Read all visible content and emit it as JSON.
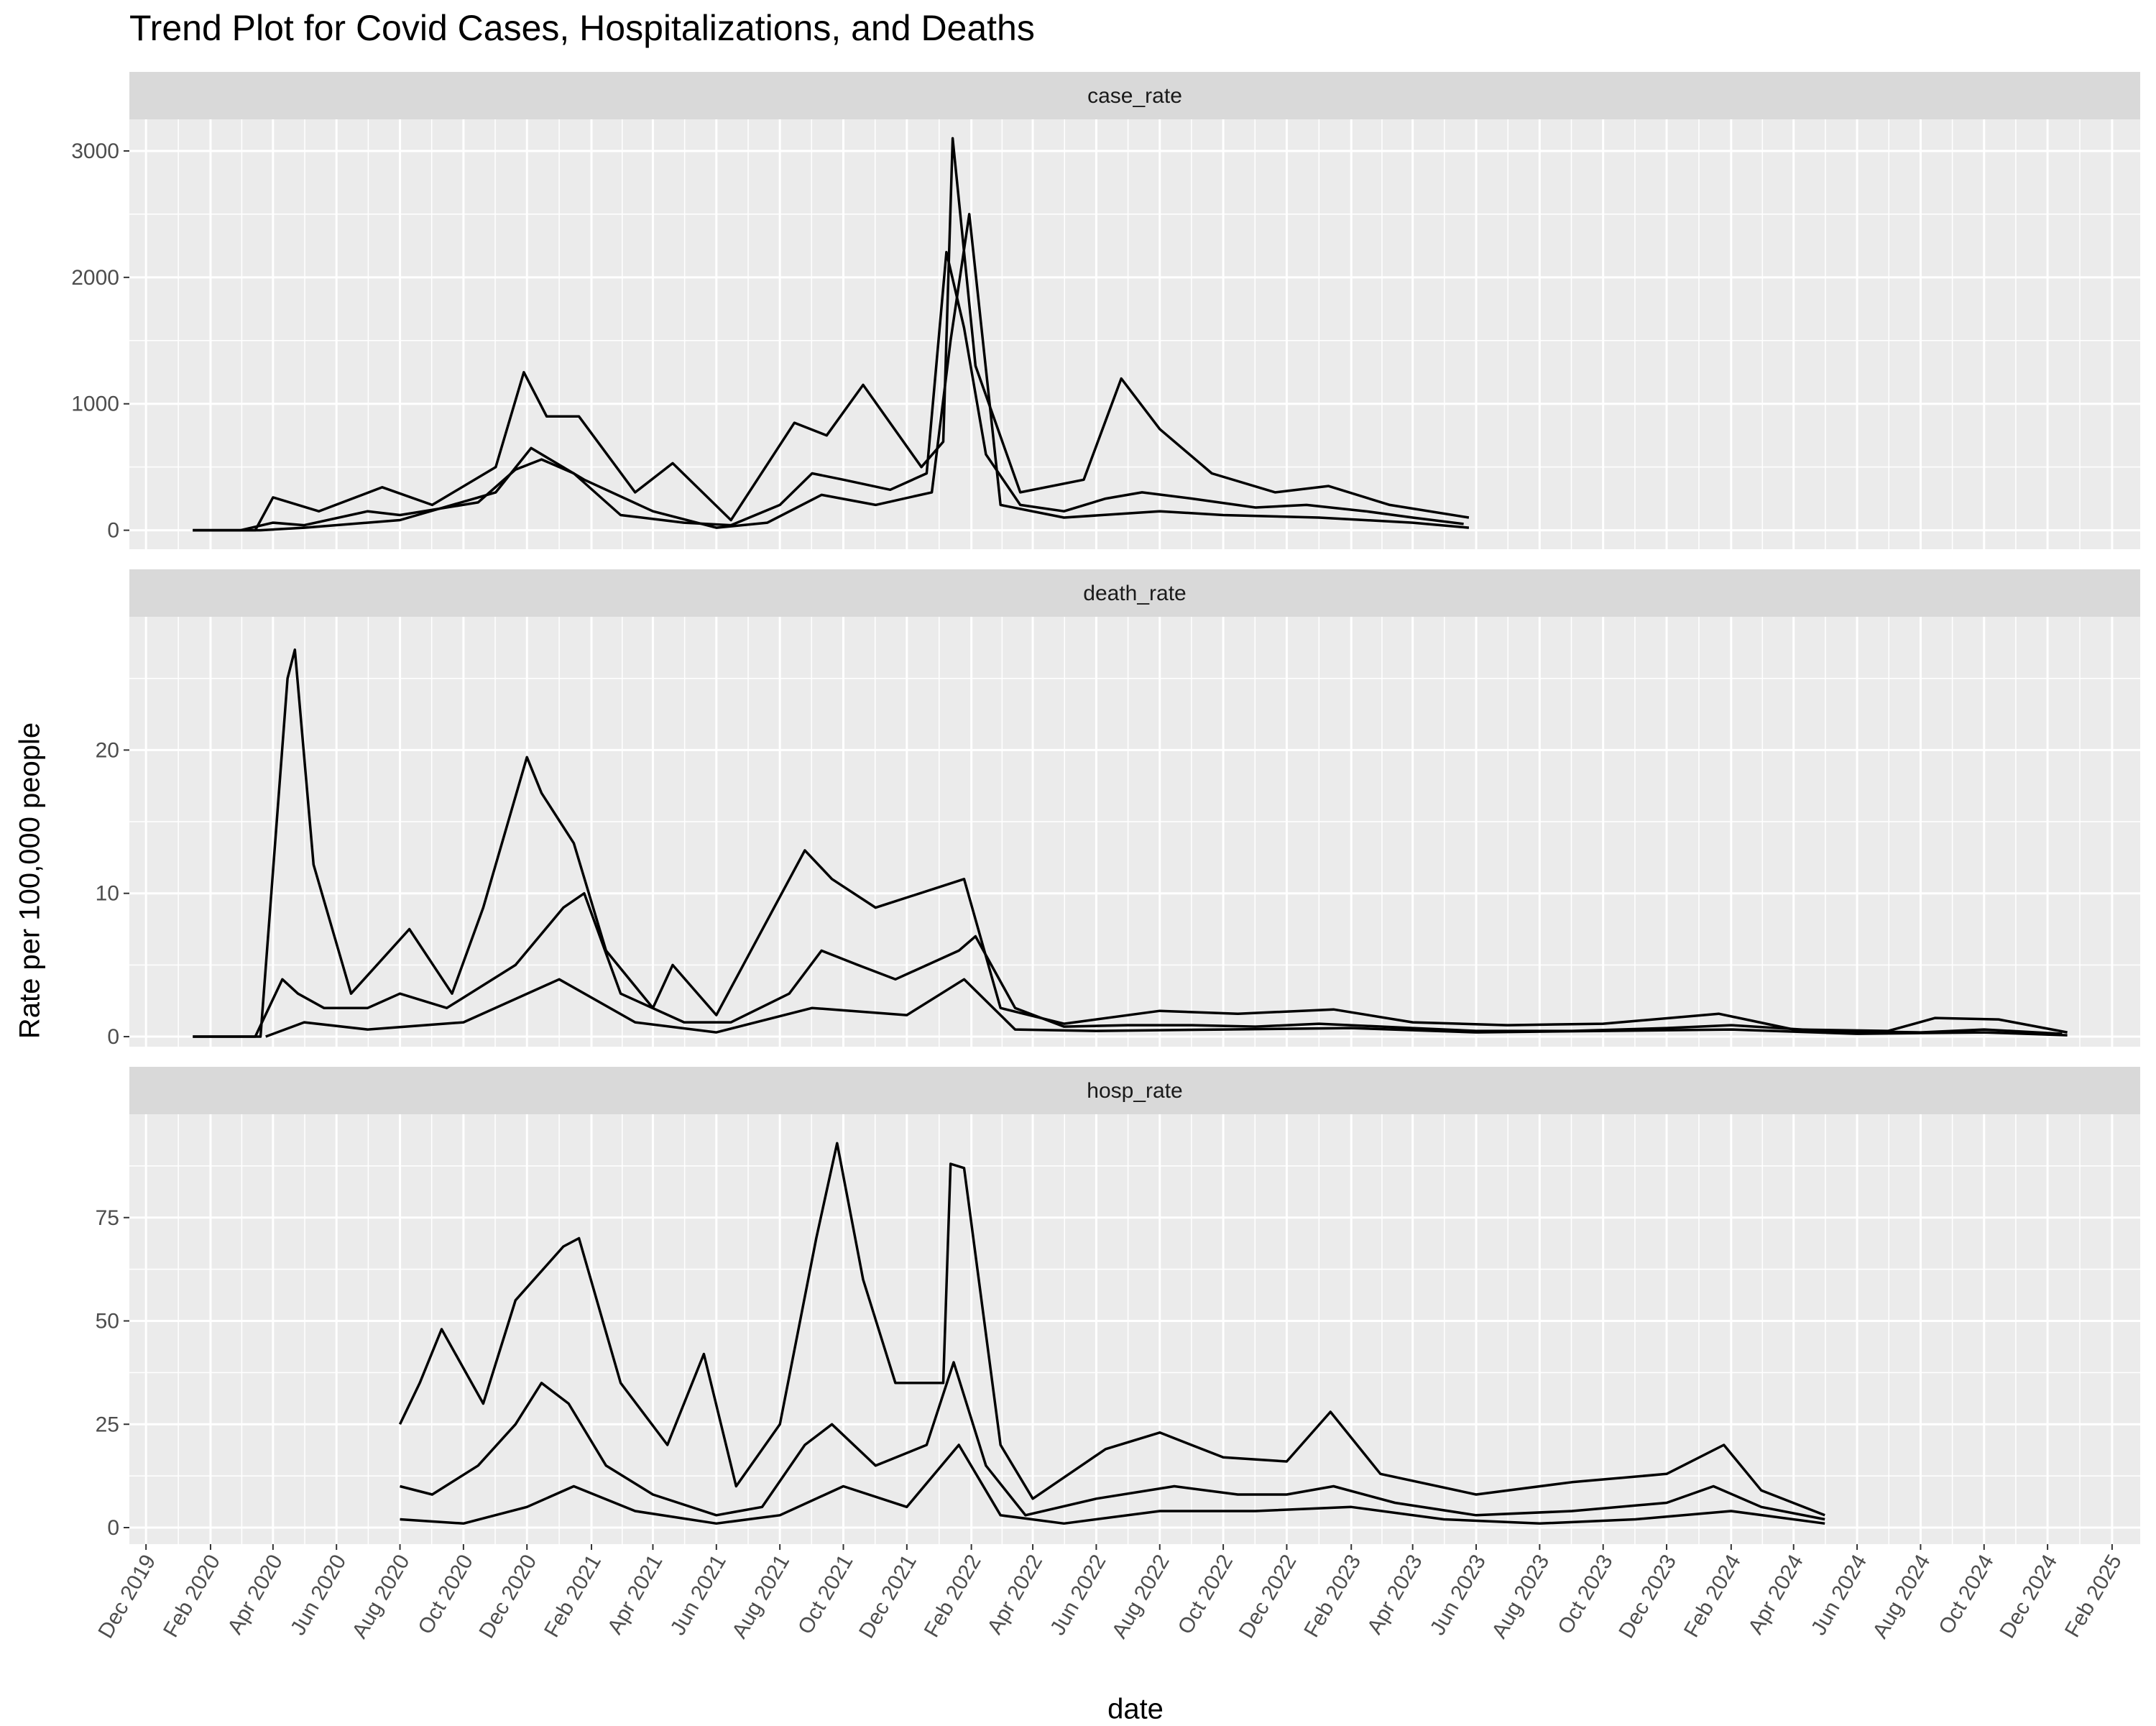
{
  "chart_data": {
    "type": "line",
    "title": "Trend Plot for Covid Cases, Hospitalizations, and Deaths",
    "xlabel": "date",
    "ylabel": "Rate per 100,000 people",
    "x_ticks": [
      "Dec 2019",
      "Feb 2020",
      "Apr 2020",
      "Jun 2020",
      "Aug 2020",
      "Oct 2020",
      "Dec 2020",
      "Feb 2021",
      "Apr 2021",
      "Jun 2021",
      "Aug 2021",
      "Oct 2021",
      "Dec 2021",
      "Feb 2022",
      "Apr 2022",
      "Jun 2022",
      "Aug 2022",
      "Oct 2022",
      "Dec 2022",
      "Feb 2023",
      "Apr 2023",
      "Jun 2023",
      "Aug 2023",
      "Oct 2023",
      "Dec 2023",
      "Feb 2024",
      "Apr 2024",
      "Jun 2024",
      "Aug 2024",
      "Oct 2024",
      "Dec 2024",
      "Feb 2025"
    ],
    "xlim": [
      "2019-11-15",
      "2025-02-28"
    ],
    "grid": true,
    "line_color": "#000000",
    "panel_background": "#ebebeb",
    "strip_background": "#d9d9d9",
    "panels": [
      {
        "strip": "case_rate",
        "ylim": [
          -150,
          3250
        ],
        "yticks": [
          0,
          1000,
          2000,
          3000
        ],
        "note": "approximate envelope traces of many overlapping state-level series",
        "series": [
          {
            "x": [
              "2020-01-15",
              "2020-03-01",
              "2020-04-01",
              "2020-05-01",
              "2020-07-01",
              "2020-08-01",
              "2020-10-15",
              "2020-11-20",
              "2020-12-15",
              "2021-01-15",
              "2021-03-01",
              "2021-05-01",
              "2021-06-15",
              "2021-08-01",
              "2021-09-01",
              "2021-10-01",
              "2021-11-15",
              "2021-12-20",
              "2022-01-08",
              "2022-01-25",
              "2022-02-15",
              "2022-03-20",
              "2022-05-01",
              "2022-06-10",
              "2022-07-15",
              "2022-09-01",
              "2022-11-01",
              "2022-12-20",
              "2023-02-15",
              "2023-04-01",
              "2023-05-20"
            ],
            "y": [
              0,
              0,
              60,
              40,
              150,
              120,
              220,
              480,
              560,
              450,
              120,
              60,
              40,
              200,
              450,
              400,
              320,
              450,
              2200,
              1600,
              600,
              200,
              150,
              250,
              300,
              250,
              180,
              200,
              150,
              100,
              50
            ]
          },
          {
            "x": [
              "2020-01-15",
              "2020-03-15",
              "2020-04-01",
              "2020-05-15",
              "2020-07-15",
              "2020-09-01",
              "2020-11-01",
              "2020-11-28",
              "2020-12-20",
              "2021-01-20",
              "2021-03-15",
              "2021-04-20",
              "2021-06-15",
              "2021-08-15",
              "2021-09-15",
              "2021-10-20",
              "2021-12-15",
              "2022-01-05",
              "2022-01-14",
              "2022-02-05",
              "2022-03-20",
              "2022-05-20",
              "2022-06-25",
              "2022-08-01",
              "2022-09-20",
              "2022-11-20",
              "2023-01-10",
              "2023-03-10",
              "2023-05-25"
            ],
            "y": [
              0,
              0,
              260,
              150,
              340,
              200,
              500,
              1250,
              900,
              900,
              300,
              530,
              80,
              850,
              750,
              1150,
              500,
              700,
              3100,
              1300,
              300,
              400,
              1200,
              800,
              450,
              300,
              350,
              200,
              100
            ]
          },
          {
            "x": [
              "2020-01-15",
              "2020-03-20",
              "2020-05-01",
              "2020-08-01",
              "2020-11-01",
              "2020-12-05",
              "2021-01-25",
              "2021-04-01",
              "2021-06-01",
              "2021-07-20",
              "2021-09-10",
              "2021-11-01",
              "2021-12-25",
              "2022-01-12",
              "2022-01-30",
              "2022-03-01",
              "2022-05-01",
              "2022-08-01",
              "2022-10-01",
              "2023-01-01",
              "2023-04-01",
              "2023-05-25"
            ],
            "y": [
              0,
              0,
              20,
              80,
              300,
              650,
              400,
              150,
              20,
              60,
              280,
              200,
              300,
              1500,
              2500,
              200,
              100,
              150,
              120,
              100,
              60,
              20
            ]
          }
        ]
      },
      {
        "strip": "death_rate",
        "ylim": [
          -0.7,
          29.3
        ],
        "yticks": [
          0,
          10,
          20
        ],
        "note": "approximate envelope traces of many overlapping state-level series",
        "series": [
          {
            "x": [
              "2020-01-15",
              "2020-03-15",
              "2020-04-10",
              "2020-04-25",
              "2020-05-20",
              "2020-07-01",
              "2020-08-01",
              "2020-09-15",
              "2020-11-20",
              "2021-01-05",
              "2021-01-25",
              "2021-03-01",
              "2021-05-01",
              "2021-06-15",
              "2021-08-10",
              "2021-09-10",
              "2021-10-15",
              "2021-11-20",
              "2022-01-20",
              "2022-02-05",
              "2022-03-15",
              "2022-05-01",
              "2022-07-01",
              "2022-09-01",
              "2022-11-01",
              "2023-01-01",
              "2023-04-01",
              "2023-06-01",
              "2023-09-01",
              "2023-12-01",
              "2024-02-01",
              "2024-05-01",
              "2024-08-01",
              "2024-10-01",
              "2024-12-15"
            ],
            "y": [
              0,
              0,
              4,
              3,
              2,
              2,
              3,
              2,
              5,
              9,
              10,
              3,
              1,
              1,
              3,
              6,
              5,
              4,
              6,
              7,
              2,
              0.7,
              0.8,
              0.8,
              0.7,
              0.9,
              0.6,
              0.4,
              0.4,
              0.6,
              0.8,
              0.4,
              0.3,
              0.5,
              0.2
            ]
          },
          {
            "x": [
              "2020-01-15",
              "2020-03-20",
              "2020-04-15",
              "2020-04-22",
              "2020-05-10",
              "2020-06-15",
              "2020-08-10",
              "2020-09-20",
              "2020-10-20",
              "2020-12-01",
              "2020-12-15",
              "2021-01-15",
              "2021-02-15",
              "2021-04-01",
              "2021-04-20",
              "2021-06-01",
              "2021-08-25",
              "2021-09-20",
              "2021-11-01",
              "2022-01-25",
              "2022-03-01",
              "2022-05-01",
              "2022-08-01",
              "2022-10-15",
              "2023-01-15",
              "2023-04-01",
              "2023-07-01",
              "2023-10-01",
              "2024-01-20",
              "2024-04-01",
              "2024-07-01",
              "2024-08-15",
              "2024-10-15",
              "2024-12-20"
            ],
            "y": [
              0,
              0,
              25,
              27,
              12,
              3,
              7.5,
              3,
              9,
              19.5,
              17,
              13.5,
              6,
              2,
              5,
              1.5,
              13,
              11,
              9,
              11,
              2,
              0.9,
              1.8,
              1.6,
              1.9,
              1,
              0.8,
              0.9,
              1.6,
              0.5,
              0.4,
              1.3,
              1.2,
              0.3
            ]
          },
          {
            "x": [
              "2020-03-25",
              "2020-05-01",
              "2020-07-01",
              "2020-10-01",
              "2021-01-01",
              "2021-03-15",
              "2021-06-01",
              "2021-09-01",
              "2021-12-01",
              "2022-01-25",
              "2022-03-15",
              "2022-06-01",
              "2022-10-01",
              "2023-02-01",
              "2023-06-01",
              "2023-10-01",
              "2024-02-01",
              "2024-06-01",
              "2024-10-01",
              "2024-12-20"
            ],
            "y": [
              0,
              1,
              0.5,
              1,
              4,
              1,
              0.3,
              2,
              1.5,
              4,
              0.5,
              0.4,
              0.5,
              0.6,
              0.3,
              0.4,
              0.5,
              0.2,
              0.3,
              0.1
            ]
          }
        ]
      },
      {
        "strip": "hosp_rate",
        "ylim": [
          -4,
          100
        ],
        "yticks": [
          0,
          25,
          50,
          75
        ],
        "note": "approximate envelope traces of many overlapping state-level series",
        "series": [
          {
            "x": [
              "2020-08-01",
              "2020-09-01",
              "2020-10-15",
              "2020-11-20",
              "2020-12-15",
              "2021-01-10",
              "2021-02-15",
              "2021-04-01",
              "2021-06-01",
              "2021-07-15",
              "2021-08-25",
              "2021-09-20",
              "2021-11-01",
              "2021-12-20",
              "2022-01-15",
              "2022-02-15",
              "2022-03-25",
              "2022-06-01",
              "2022-08-15",
              "2022-10-15",
              "2022-12-01",
              "2023-01-15",
              "2023-03-15",
              "2023-06-01",
              "2023-09-01",
              "2023-12-01",
              "2024-01-15",
              "2024-03-01",
              "2024-05-01"
            ],
            "y": [
              10,
              8,
              15,
              25,
              35,
              30,
              15,
              8,
              3,
              5,
              20,
              25,
              15,
              20,
              40,
              15,
              3,
              7,
              10,
              8,
              8,
              10,
              6,
              3,
              4,
              6,
              10,
              5,
              2
            ]
          },
          {
            "x": [
              "2020-08-01",
              "2020-08-20",
              "2020-09-10",
              "2020-10-20",
              "2020-11-20",
              "2021-01-05",
              "2021-01-20",
              "2021-03-01",
              "2021-04-15",
              "2021-05-20",
              "2021-06-20",
              "2021-08-01",
              "2021-09-05",
              "2021-09-25",
              "2021-10-20",
              "2021-11-20",
              "2022-01-05",
              "2022-01-12",
              "2022-01-25",
              "2022-03-01",
              "2022-04-01",
              "2022-06-10",
              "2022-08-01",
              "2022-10-01",
              "2022-12-01",
              "2023-01-12",
              "2023-03-01",
              "2023-06-01",
              "2023-09-01",
              "2023-12-01",
              "2024-01-25",
              "2024-03-01",
              "2024-05-01"
            ],
            "y": [
              25,
              35,
              48,
              30,
              55,
              68,
              70,
              35,
              20,
              42,
              10,
              25,
              70,
              93,
              60,
              35,
              35,
              88,
              87,
              20,
              7,
              19,
              23,
              17,
              16,
              28,
              13,
              8,
              11,
              13,
              20,
              9,
              3
            ]
          },
          {
            "x": [
              "2020-08-01",
              "2020-10-01",
              "2020-12-01",
              "2021-01-15",
              "2021-03-15",
              "2021-06-01",
              "2021-08-01",
              "2021-10-01",
              "2021-12-01",
              "2022-01-20",
              "2022-03-01",
              "2022-05-01",
              "2022-08-01",
              "2022-11-01",
              "2023-02-01",
              "2023-05-01",
              "2023-08-01",
              "2023-11-01",
              "2024-02-01",
              "2024-05-01"
            ],
            "y": [
              2,
              1,
              5,
              10,
              4,
              1,
              3,
              10,
              5,
              20,
              3,
              1,
              4,
              4,
              5,
              2,
              1,
              2,
              4,
              1
            ]
          }
        ]
      }
    ]
  }
}
